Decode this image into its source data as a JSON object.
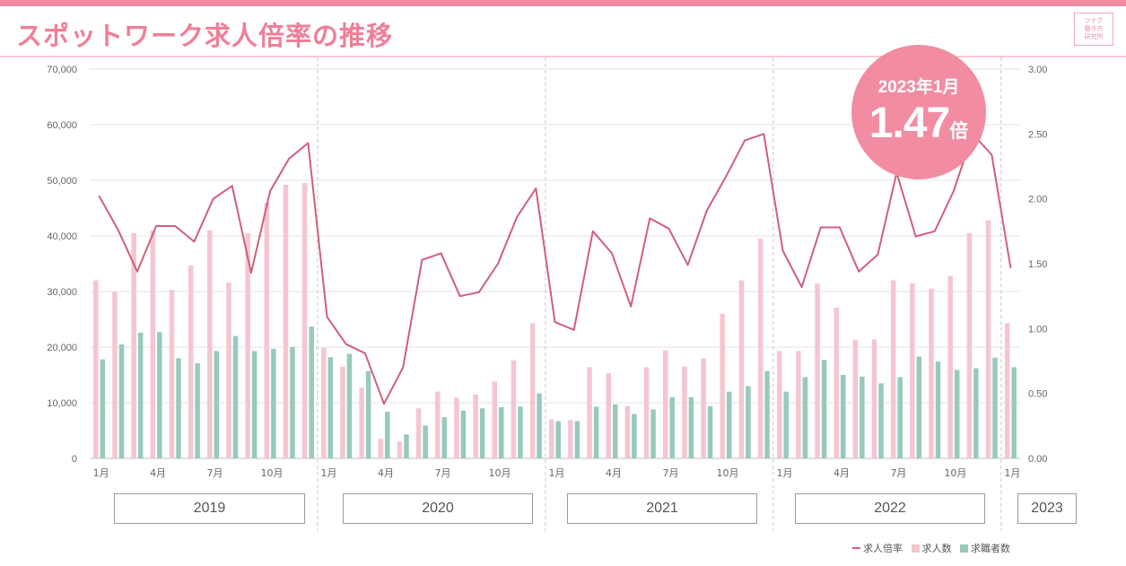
{
  "title": "スポットワーク求人倍率の推移",
  "logo_lines": [
    "ツナグ",
    "働き方",
    "研究所"
  ],
  "colors": {
    "accent": "#f28ca3",
    "line": "#cf5f7c",
    "openings_bar": "#f5c6d0",
    "seekers_bar": "#98c9bd"
  },
  "callout": {
    "date": "2023年1月",
    "value": "1.47",
    "unit": "倍"
  },
  "year_labels": [
    "2019",
    "2020",
    "2021",
    "2022",
    "2023"
  ],
  "legend": {
    "ratio": "求人倍率",
    "openings": "求人数",
    "seekers": "求職者数"
  },
  "chart_data": {
    "type": "bar",
    "title": "スポットワーク求人倍率の推移",
    "x_tick_labels": [
      "1月",
      "4月",
      "7月",
      "10月"
    ],
    "left_axis": {
      "ylim": [
        0,
        70000
      ],
      "ticks": [
        "0",
        "10,000",
        "20,000",
        "30,000",
        "40,000",
        "50,000",
        "60,000",
        "70,000"
      ]
    },
    "right_axis": {
      "ylim": [
        0,
        3.0
      ],
      "ticks": [
        "0.00",
        "0.50",
        "1.00",
        "1.50",
        "2.00",
        "2.50",
        "3.00"
      ]
    },
    "grid": true,
    "legend_position": "bottom-right",
    "categories": [
      "2019-01",
      "2019-02",
      "2019-03",
      "2019-04",
      "2019-05",
      "2019-06",
      "2019-07",
      "2019-08",
      "2019-09",
      "2019-10",
      "2019-11",
      "2019-12",
      "2020-01",
      "2020-02",
      "2020-03",
      "2020-04",
      "2020-05",
      "2020-06",
      "2020-07",
      "2020-08",
      "2020-09",
      "2020-10",
      "2020-11",
      "2020-12",
      "2021-01",
      "2021-02",
      "2021-03",
      "2021-04",
      "2021-05",
      "2021-06",
      "2021-07",
      "2021-08",
      "2021-09",
      "2021-10",
      "2021-11",
      "2021-12",
      "2022-01",
      "2022-02",
      "2022-03",
      "2022-04",
      "2022-05",
      "2022-06",
      "2022-07",
      "2022-08",
      "2022-09",
      "2022-10",
      "2022-11",
      "2022-12",
      "2023-01"
    ],
    "series": [
      {
        "name": "求人数",
        "axis": "left",
        "type": "bar",
        "values": [
          32000,
          30000,
          40500,
          41000,
          30300,
          34700,
          41000,
          31600,
          40500,
          46000,
          49200,
          49500,
          19900,
          16500,
          12700,
          3500,
          3000,
          9000,
          12000,
          10900,
          11500,
          13800,
          17600,
          24300,
          7000,
          6900,
          16400,
          15300,
          9400,
          16400,
          19400,
          16500,
          18000,
          26000,
          32000,
          39500,
          19300,
          19300,
          31400,
          27100,
          21300,
          21400,
          32000,
          31500,
          30500,
          32800,
          40500,
          42800,
          24300
        ]
      },
      {
        "name": "求職者数",
        "axis": "left",
        "type": "bar",
        "values": [
          17800,
          20500,
          22600,
          22700,
          18000,
          17100,
          19300,
          22000,
          19300,
          19700,
          20000,
          23700,
          18200,
          18800,
          15700,
          8400,
          4300,
          5900,
          7400,
          8600,
          9000,
          9200,
          9300,
          11700,
          6700,
          6700,
          9300,
          9700,
          8000,
          8800,
          11000,
          11000,
          9400,
          12000,
          13000,
          15700,
          12000,
          14600,
          17700,
          15000,
          14700,
          13500,
          14600,
          18300,
          17400,
          15900,
          16200,
          18100,
          16400
        ]
      },
      {
        "name": "求人倍率",
        "axis": "right",
        "type": "line",
        "values": [
          2.02,
          1.76,
          1.44,
          1.79,
          1.79,
          1.67,
          2.0,
          2.1,
          1.43,
          2.06,
          2.31,
          2.43,
          1.09,
          0.88,
          0.81,
          0.42,
          0.7,
          1.53,
          1.58,
          1.25,
          1.28,
          1.5,
          1.86,
          2.08,
          1.05,
          0.99,
          1.75,
          1.58,
          1.17,
          1.85,
          1.77,
          1.49,
          1.91,
          2.17,
          2.45,
          2.5,
          1.6,
          1.32,
          1.78,
          1.78,
          1.44,
          1.57,
          2.2,
          1.71,
          1.75,
          2.06,
          2.5,
          2.34,
          1.47
        ]
      }
    ]
  }
}
